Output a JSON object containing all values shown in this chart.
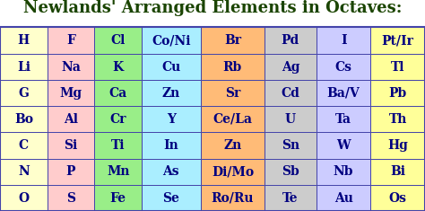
{
  "title": "Newlands' Arranged Elements in Octaves:",
  "title_color": "#1a4400",
  "background_color": "#ffffff",
  "table_data": [
    [
      "H",
      "F",
      "Cl",
      "Co/Ni",
      "Br",
      "Pd",
      "I",
      "Pt/Ir"
    ],
    [
      "Li",
      "Na",
      "K",
      "Cu",
      "Rb",
      "Ag",
      "Cs",
      "Tl"
    ],
    [
      "G",
      "Mg",
      "Ca",
      "Zn",
      "Sr",
      "Cd",
      "Ba/V",
      "Pb"
    ],
    [
      "Bo",
      "Al",
      "Cr",
      "Y",
      "Ce/La",
      "U",
      "Ta",
      "Th"
    ],
    [
      "C",
      "Si",
      "Ti",
      "In",
      "Zn",
      "Sn",
      "W",
      "Hg"
    ],
    [
      "N",
      "P",
      "Mn",
      "As",
      "Di/Mo",
      "Sb",
      "Nb",
      "Bi"
    ],
    [
      "O",
      "S",
      "Fe",
      "Se",
      "Ro/Ru",
      "Te",
      "Au",
      "Os"
    ]
  ],
  "col_colors": [
    "#ffffcc",
    "#ffcccc",
    "#99ee88",
    "#aaeeff",
    "#ffbb77",
    "#cccccc",
    "#ccccff",
    "#ffff99"
  ],
  "text_color": "#000080",
  "border_color": "#4444aa",
  "title_fontsize": 13,
  "cell_fontsize": 10,
  "col_widths_rel": [
    1.0,
    1.0,
    1.0,
    1.25,
    1.35,
    1.1,
    1.15,
    1.15
  ]
}
